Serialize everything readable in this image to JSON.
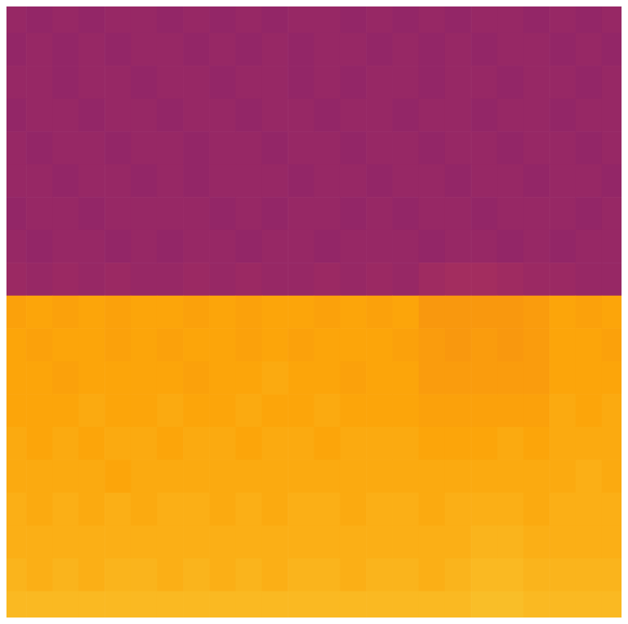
{
  "chart_data": {
    "type": "heatmap",
    "xlim": [
      0,
      24
    ],
    "ylim": [
      0,
      19
    ],
    "tick_labels": false,
    "value_range": [
      0,
      1
    ],
    "cells": [
      [
        0.41,
        0.4,
        0.41,
        0.4,
        0.41,
        0.41,
        0.4,
        0.41,
        0.4,
        0.41,
        0.4,
        0.41,
        0.41,
        0.4,
        0.41,
        0.4,
        0.41,
        0.4,
        0.41,
        0.41,
        0.4,
        0.41,
        0.4,
        0.41
      ],
      [
        0.4,
        0.41,
        0.4,
        0.41,
        0.4,
        0.41,
        0.41,
        0.4,
        0.41,
        0.4,
        0.41,
        0.4,
        0.41,
        0.41,
        0.4,
        0.41,
        0.4,
        0.41,
        0.4,
        0.41,
        0.41,
        0.4,
        0.41,
        0.4
      ],
      [
        0.41,
        0.41,
        0.4,
        0.41,
        0.41,
        0.4,
        0.41,
        0.41,
        0.4,
        0.41,
        0.41,
        0.4,
        0.41,
        0.4,
        0.41,
        0.41,
        0.4,
        0.41,
        0.41,
        0.4,
        0.41,
        0.41,
        0.4,
        0.41
      ],
      [
        0.4,
        0.41,
        0.41,
        0.4,
        0.41,
        0.41,
        0.4,
        0.41,
        0.41,
        0.4,
        0.41,
        0.41,
        0.4,
        0.41,
        0.41,
        0.4,
        0.41,
        0.41,
        0.4,
        0.41,
        0.41,
        0.4,
        0.41,
        0.41
      ],
      [
        0.41,
        0.4,
        0.41,
        0.41,
        0.4,
        0.41,
        0.41,
        0.4,
        0.41,
        0.41,
        0.4,
        0.41,
        0.41,
        0.4,
        0.41,
        0.41,
        0.4,
        0.41,
        0.41,
        0.4,
        0.41,
        0.41,
        0.4,
        0.41
      ],
      [
        0.41,
        0.41,
        0.4,
        0.41,
        0.41,
        0.4,
        0.41,
        0.4,
        0.41,
        0.41,
        0.41,
        0.4,
        0.41,
        0.41,
        0.4,
        0.41,
        0.41,
        0.4,
        0.41,
        0.41,
        0.4,
        0.41,
        0.41,
        0.4
      ],
      [
        0.4,
        0.41,
        0.41,
        0.4,
        0.41,
        0.41,
        0.41,
        0.41,
        0.4,
        0.41,
        0.4,
        0.41,
        0.41,
        0.4,
        0.41,
        0.4,
        0.41,
        0.41,
        0.4,
        0.41,
        0.41,
        0.41,
        0.4,
        0.41
      ],
      [
        0.41,
        0.4,
        0.41,
        0.41,
        0.4,
        0.41,
        0.4,
        0.41,
        0.41,
        0.4,
        0.41,
        0.41,
        0.4,
        0.41,
        0.41,
        0.41,
        0.4,
        0.41,
        0.41,
        0.4,
        0.41,
        0.4,
        0.41,
        0.41
      ],
      [
        0.42,
        0.41,
        0.42,
        0.41,
        0.42,
        0.41,
        0.41,
        0.42,
        0.41,
        0.42,
        0.41,
        0.41,
        0.42,
        0.41,
        0.42,
        0.41,
        0.43,
        0.44,
        0.44,
        0.43,
        0.42,
        0.42,
        0.41,
        0.41
      ],
      [
        0.79,
        0.8,
        0.79,
        0.8,
        0.79,
        0.8,
        0.8,
        0.79,
        0.8,
        0.79,
        0.8,
        0.8,
        0.79,
        0.8,
        0.79,
        0.8,
        0.77,
        0.77,
        0.77,
        0.77,
        0.78,
        0.8,
        0.79,
        0.8
      ],
      [
        0.8,
        0.79,
        0.8,
        0.8,
        0.79,
        0.8,
        0.79,
        0.8,
        0.8,
        0.79,
        0.8,
        0.79,
        0.8,
        0.8,
        0.8,
        0.79,
        0.78,
        0.77,
        0.78,
        0.77,
        0.78,
        0.8,
        0.8,
        0.79
      ],
      [
        0.8,
        0.8,
        0.79,
        0.8,
        0.8,
        0.8,
        0.8,
        0.79,
        0.8,
        0.8,
        0.81,
        0.8,
        0.8,
        0.79,
        0.8,
        0.8,
        0.78,
        0.78,
        0.78,
        0.78,
        0.78,
        0.8,
        0.8,
        0.8
      ],
      [
        0.8,
        0.8,
        0.8,
        0.81,
        0.8,
        0.8,
        0.81,
        0.8,
        0.8,
        0.81,
        0.8,
        0.8,
        0.81,
        0.8,
        0.8,
        0.8,
        0.79,
        0.79,
        0.79,
        0.79,
        0.79,
        0.81,
        0.8,
        0.81
      ],
      [
        0.81,
        0.8,
        0.81,
        0.8,
        0.81,
        0.81,
        0.8,
        0.81,
        0.81,
        0.8,
        0.81,
        0.81,
        0.8,
        0.81,
        0.81,
        0.81,
        0.8,
        0.8,
        0.8,
        0.81,
        0.8,
        0.81,
        0.81,
        0.81
      ],
      [
        0.81,
        0.81,
        0.81,
        0.81,
        0.8,
        0.81,
        0.81,
        0.81,
        0.81,
        0.81,
        0.81,
        0.81,
        0.81,
        0.81,
        0.81,
        0.81,
        0.81,
        0.81,
        0.81,
        0.81,
        0.81,
        0.81,
        0.82,
        0.81
      ],
      [
        0.82,
        0.81,
        0.82,
        0.81,
        0.82,
        0.81,
        0.82,
        0.82,
        0.81,
        0.82,
        0.81,
        0.82,
        0.82,
        0.81,
        0.82,
        0.82,
        0.81,
        0.82,
        0.82,
        0.82,
        0.81,
        0.82,
        0.82,
        0.82
      ],
      [
        0.82,
        0.82,
        0.82,
        0.82,
        0.82,
        0.82,
        0.82,
        0.82,
        0.82,
        0.82,
        0.82,
        0.82,
        0.82,
        0.82,
        0.82,
        0.82,
        0.82,
        0.82,
        0.83,
        0.83,
        0.82,
        0.82,
        0.82,
        0.82
      ],
      [
        0.83,
        0.82,
        0.83,
        0.82,
        0.83,
        0.83,
        0.82,
        0.83,
        0.82,
        0.83,
        0.82,
        0.83,
        0.83,
        0.82,
        0.83,
        0.83,
        0.82,
        0.83,
        0.84,
        0.84,
        0.83,
        0.83,
        0.83,
        0.83
      ],
      [
        0.84,
        0.84,
        0.84,
        0.84,
        0.84,
        0.84,
        0.84,
        0.84,
        0.84,
        0.84,
        0.84,
        0.84,
        0.84,
        0.84,
        0.84,
        0.84,
        0.84,
        0.84,
        0.85,
        0.85,
        0.84,
        0.84,
        0.84,
        0.84
      ]
    ]
  }
}
